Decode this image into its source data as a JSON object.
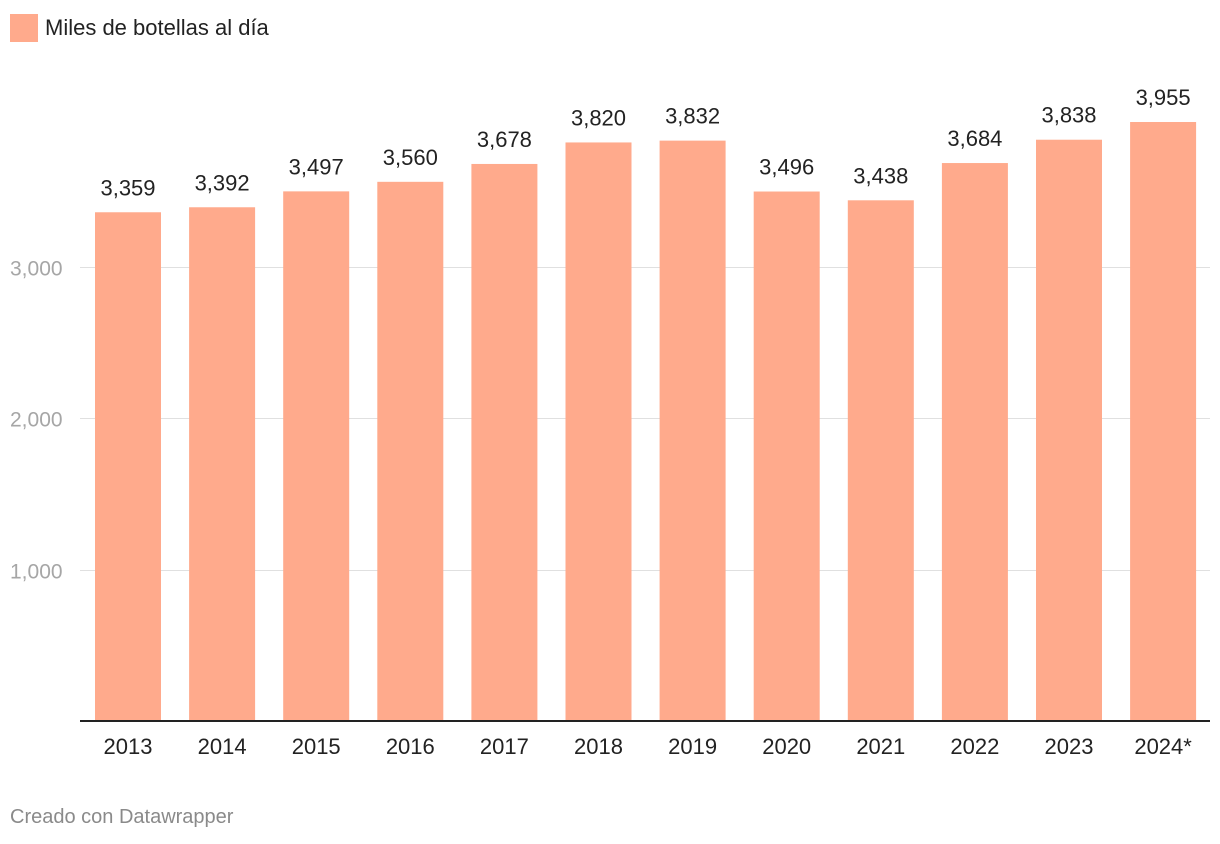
{
  "colors": {
    "bar": "#ffaa8c",
    "grid": "#e0e0e0",
    "axis": "#222222",
    "ytick": "#a6a6a6",
    "label": "#222222"
  },
  "legend": {
    "label": "Miles de botellas al día"
  },
  "footer": {
    "credit": "Creado con Datawrapper"
  },
  "chart_data": {
    "type": "bar",
    "series": [
      {
        "name": "Miles de botellas al día",
        "values": [
          3359,
          3392,
          3497,
          3560,
          3678,
          3820,
          3832,
          3496,
          3438,
          3684,
          3838,
          3955
        ]
      }
    ],
    "categories": [
      "2013",
      "2014",
      "2015",
      "2016",
      "2017",
      "2018",
      "2019",
      "2020",
      "2021",
      "2022",
      "2023",
      "2024*"
    ],
    "value_labels": [
      "3,359",
      "3,392",
      "3,497",
      "3,560",
      "3,678",
      "3,820",
      "3,832",
      "3,496",
      "3,438",
      "3,684",
      "3,838",
      "3,955"
    ],
    "yticks": [
      1000,
      2000,
      3000
    ],
    "ytick_labels": [
      "1,000",
      "2,000",
      "3,000"
    ],
    "ylim": [
      0,
      3955
    ],
    "grid": true,
    "legend_position": "top-left"
  }
}
